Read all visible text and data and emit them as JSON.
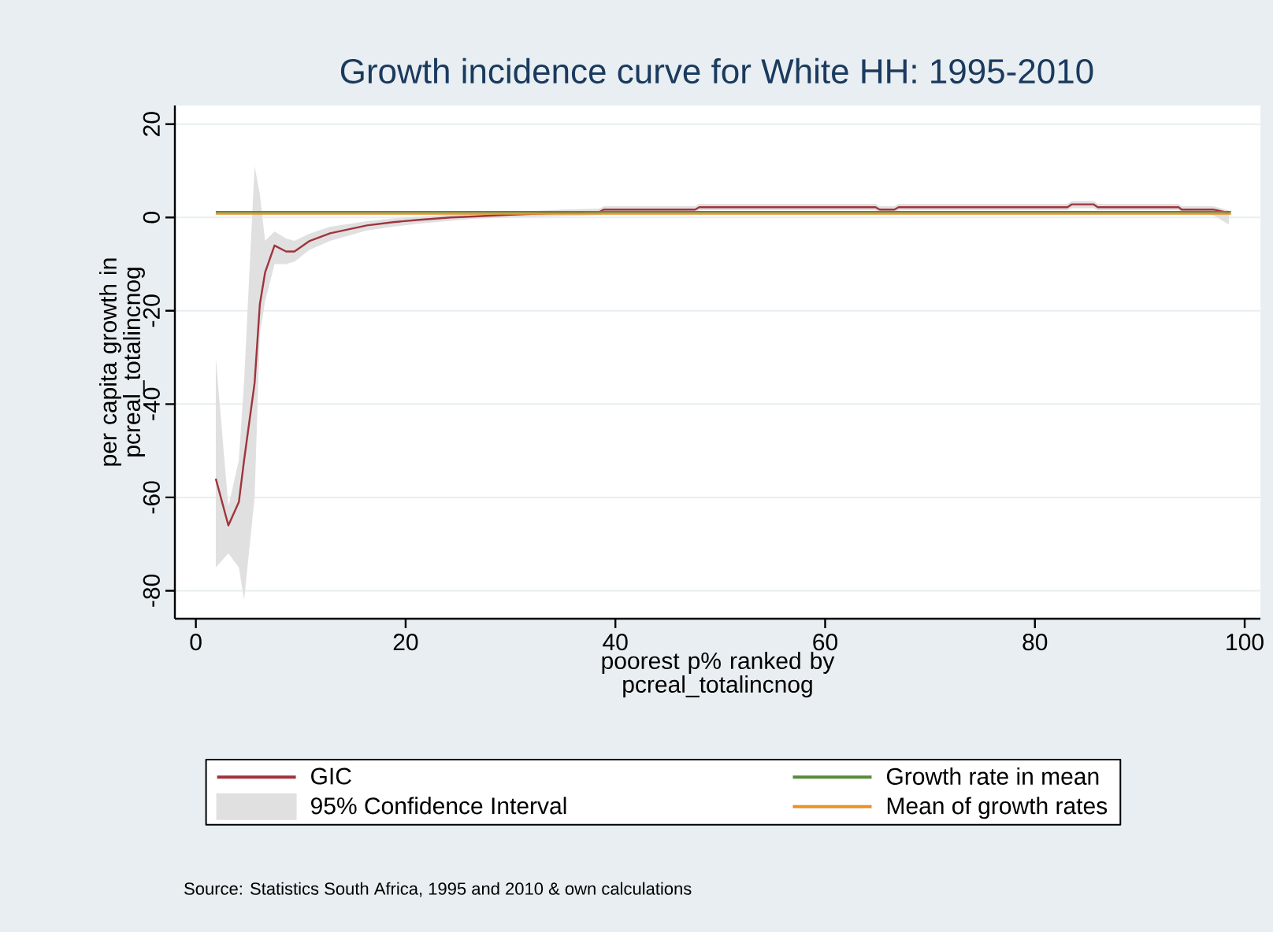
{
  "chart_data": {
    "type": "line",
    "title": "Growth incidence curve for White HH: 1995-2010",
    "xlabel": "poorest p% ranked by pcreal_totalincnog",
    "ylabel": "per capita growth in pcreal_totalincnog",
    "xlim": [
      -2,
      101.5
    ],
    "ylim": [
      -86,
      24
    ],
    "xticks": [
      0,
      20,
      40,
      60,
      80,
      100
    ],
    "yticks": [
      -80,
      -60,
      -40,
      -20,
      0,
      20
    ],
    "grid": "y",
    "legend": "bottom",
    "annotations": [
      "95% Confidence Interval",
      "Source: Statistics South Africa, 1995 and 2010 & own calculations"
    ],
    "series": [
      {
        "name": "GIC",
        "type": "line",
        "color": "#a0343c",
        "x": [
          1.9,
          3.1,
          4.1,
          4.6,
          5.6,
          6.1,
          6.6,
          7.5,
          8.6,
          9.4,
          10.8,
          12.8,
          16.3,
          18.8,
          21.3,
          24.3,
          26.5,
          30,
          35,
          38.5,
          38.9,
          47.6,
          48,
          64.8,
          65.2,
          66.6,
          67,
          83.1,
          83.5,
          85.6,
          86,
          93.7,
          94,
          97,
          98.5
        ],
        "values": [
          -56,
          -66,
          -61,
          -52,
          -35.5,
          -18.6,
          -11.8,
          -6,
          -7.3,
          -7.3,
          -5.1,
          -3.4,
          -1.7,
          -1,
          -0.5,
          0,
          0.2,
          0.6,
          1,
          1.2,
          1.7,
          1.7,
          2.2,
          2.2,
          1.7,
          1.7,
          2.2,
          2.2,
          2.8,
          2.8,
          2.2,
          2.2,
          1.7,
          1.7,
          1
        ],
        "lower": [
          -75,
          -72,
          -75,
          -82,
          -60,
          -25,
          -18,
          -10,
          -10,
          -9.5,
          -7,
          -5,
          -2.8,
          -2,
          -1.3,
          -0.7,
          -0.3,
          0,
          0.3,
          0.5,
          1,
          1,
          1.5,
          1.5,
          1,
          1,
          1.5,
          1.5,
          2,
          2,
          1.5,
          1.5,
          1,
          0.5,
          -1.5
        ],
        "upper": [
          -30,
          -62,
          -52,
          -35,
          11,
          5,
          -5,
          -3,
          -4.5,
          -5,
          -3.5,
          -2,
          -0.8,
          -0.2,
          0.2,
          0.6,
          0.8,
          1.2,
          1.7,
          1.9,
          2.4,
          2.4,
          2.9,
          2.9,
          2.4,
          2.4,
          2.9,
          2.9,
          3.5,
          3.5,
          2.9,
          2.9,
          2.4,
          2.4,
          1.5
        ]
      },
      {
        "name": "Growth rate in mean",
        "type": "line",
        "color": "#5a8a3a",
        "x": [
          1.9,
          98.7
        ],
        "values": [
          1.2,
          1.2
        ]
      },
      {
        "name": "Mean of growth rates",
        "type": "line",
        "color": "#e8922a",
        "x": [
          1.9,
          98.7
        ],
        "values": [
          0.8,
          0.8
        ]
      }
    ]
  }
}
